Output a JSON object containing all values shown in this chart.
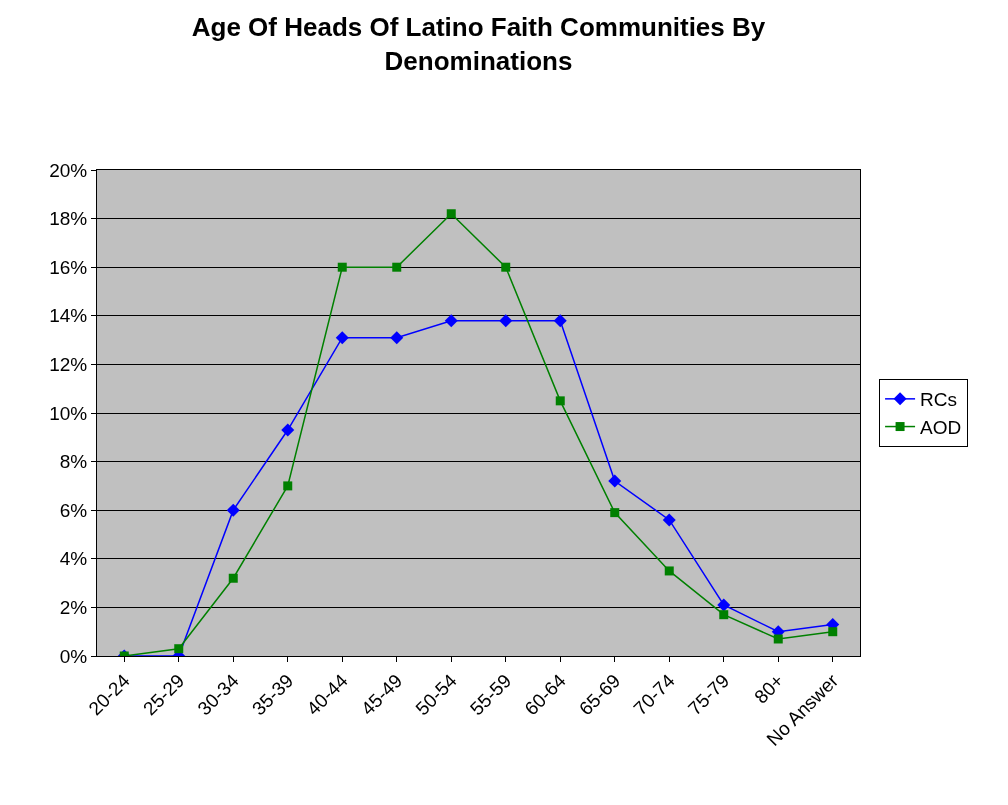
{
  "chart_data": {
    "type": "line",
    "title": "Age Of Heads Of Latino Faith Communities By Denominations",
    "categories": [
      "20-24",
      "25-29",
      "30-34",
      "35-39",
      "40-44",
      "45-49",
      "50-54",
      "55-59",
      "60-64",
      "65-69",
      "70-74",
      "75-79",
      "80+",
      "No Answer"
    ],
    "series": [
      {
        "name": "RCs",
        "color": "#0000ff",
        "marker": "diamond",
        "values": [
          0,
          0,
          6.0,
          9.3,
          13.1,
          13.1,
          13.8,
          13.8,
          13.8,
          7.2,
          5.6,
          2.1,
          1.0,
          1.3
        ]
      },
      {
        "name": "AOD",
        "color": "#008000",
        "marker": "square",
        "values": [
          0,
          0.3,
          3.2,
          7.0,
          16.0,
          16.0,
          18.2,
          16.0,
          10.5,
          5.9,
          3.5,
          1.7,
          0.7,
          1.0
        ]
      }
    ],
    "ylim": [
      0,
      20
    ],
    "yticks": [
      {
        "value": 0,
        "label": "0%"
      },
      {
        "value": 2,
        "label": "2%"
      },
      {
        "value": 4,
        "label": "4%"
      },
      {
        "value": 6,
        "label": "6%"
      },
      {
        "value": 8,
        "label": "8%"
      },
      {
        "value": 10,
        "label": "10%"
      },
      {
        "value": 12,
        "label": "12%"
      },
      {
        "value": 14,
        "label": "14%"
      },
      {
        "value": 16,
        "label": "16%"
      },
      {
        "value": 18,
        "label": "18%"
      },
      {
        "value": 20,
        "label": "20%"
      }
    ],
    "grid": "y",
    "legend": "right",
    "line_style": "solid"
  }
}
